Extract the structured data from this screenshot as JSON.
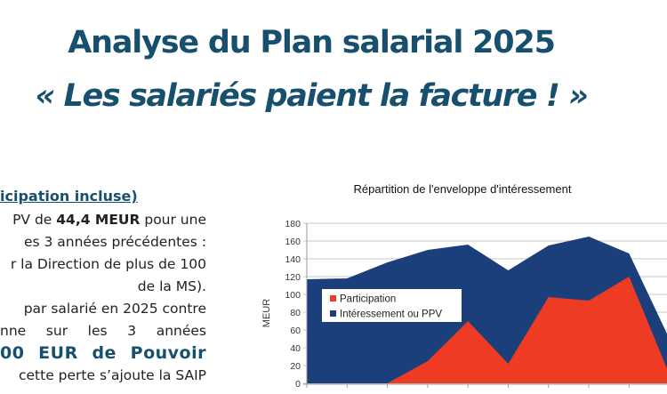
{
  "header": {
    "title": "Analyse du Plan salarial 2025",
    "subtitle": "« Les salariés paient la facture ! »"
  },
  "left_column": {
    "heading": "icipation incluse)",
    "lines": [
      {
        "parts": [
          {
            "text": "PV de ",
            "bold": false
          },
          {
            "text": "44,4 MEUR",
            "bold": true
          },
          {
            "text": " pour une",
            "bold": false
          }
        ]
      },
      {
        "parts": [
          {
            "text": "es 3 années précédentes :",
            "bold": false
          }
        ]
      },
      {
        "parts": [
          {
            "text": "r la Direction de plus de 100",
            "bold": false
          }
        ]
      },
      {
        "parts": [
          {
            "text": "de la MS).",
            "bold": false
          }
        ]
      },
      {
        "parts": [
          {
            "text": "par salarié en 2025 contre",
            "bold": false
          }
        ]
      },
      {
        "parts": [
          {
            "text": "nne sur les 3 années",
            "bold": false
          }
        ]
      },
      {
        "parts": [
          {
            "text": "00 EUR de Pouvoir",
            "bold": true
          }
        ]
      },
      {
        "parts": [
          {
            "text": "cette perte s’ajoute la SAIP",
            "bold": false
          }
        ]
      }
    ]
  },
  "chart_data": {
    "type": "area",
    "stacked": false,
    "title": "Répartition de l'enveloppe d'intéressement",
    "xlabel": "",
    "ylabel": "MEUR",
    "ylim": [
      0,
      180
    ],
    "yticks": [
      0,
      20,
      40,
      60,
      80,
      100,
      120,
      140,
      160,
      180
    ],
    "grid": true,
    "legend_position": "center-left",
    "x_count": 10,
    "series": [
      {
        "name": "Intéressement ou PPV",
        "color": "#1a3f7a",
        "values": [
          117,
          118,
          136,
          150,
          156,
          127,
          155,
          165,
          146,
          50
        ]
      },
      {
        "name": "Participation",
        "color": "#ee3b24",
        "values": [
          0,
          0,
          0,
          25,
          70,
          22,
          97,
          93,
          120,
          10
        ]
      }
    ]
  },
  "colors": {
    "title": "#17506e",
    "text": "#222222",
    "gridline": "#c8c8c8",
    "axis": "#9a9a9a"
  }
}
